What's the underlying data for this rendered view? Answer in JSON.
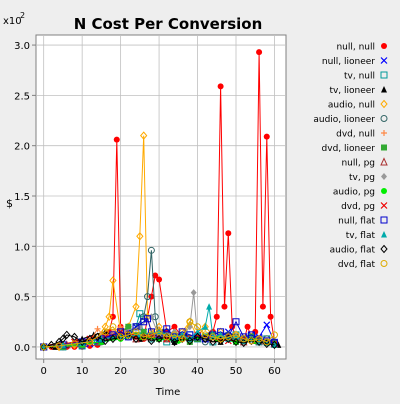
{
  "chart_data": {
    "type": "line",
    "title": "N Cost Per Conversion",
    "xlabel": "Time",
    "ylabel": "$",
    "y_multiplier_label": "x10",
    "y_multiplier_exp": "2",
    "xlim": [
      -2,
      63
    ],
    "ylim": [
      -0.12,
      3.1
    ],
    "x_ticks": [
      0,
      10,
      20,
      30,
      40,
      50,
      60
    ],
    "y_ticks": [
      0.0,
      0.5,
      1.0,
      1.5,
      2.0,
      2.5,
      3.0
    ],
    "y_tick_labels": [
      "0.0",
      "0.5",
      "1.0",
      "1.5",
      "2.0",
      "2.5",
      "3.0"
    ],
    "grid": true,
    "legend_position": "right",
    "series": [
      {
        "name": "null, null",
        "color": "#ff0000",
        "marker": "dot",
        "x": [
          0,
          2,
          4,
          6,
          8,
          10,
          12,
          14,
          15,
          16,
          17,
          18,
          19,
          20,
          22,
          24,
          26,
          28,
          29,
          30,
          32,
          34,
          36,
          38,
          40,
          42,
          44,
          45,
          46,
          47,
          48,
          49,
          50,
          52,
          53,
          54,
          55,
          56,
          57,
          58,
          59,
          60
        ],
        "y": [
          0,
          0,
          0,
          0,
          0,
          0,
          0.01,
          0.02,
          0.05,
          0.1,
          0.15,
          0.3,
          2.06,
          0.2,
          0.15,
          0.1,
          0.08,
          0.5,
          0.71,
          0.67,
          0.15,
          0.2,
          0.1,
          0.05,
          0.08,
          0.1,
          0.15,
          0.3,
          2.59,
          0.4,
          1.13,
          0.2,
          0.1,
          0.05,
          0.2,
          0.1,
          0.15,
          2.93,
          0.4,
          2.09,
          0.3,
          0.05
        ]
      },
      {
        "name": "null, lioneer",
        "color": "#0000ff",
        "marker": "x",
        "x": [
          0,
          5,
          10,
          12,
          14,
          16,
          18,
          20,
          22,
          24,
          26,
          28,
          30,
          32,
          34,
          36,
          38,
          40,
          42,
          44,
          46,
          48,
          50,
          52,
          54,
          56,
          58,
          60
        ],
        "y": [
          0,
          0,
          0.01,
          0.03,
          0.05,
          0.08,
          0.12,
          0.1,
          0.15,
          0.2,
          0.15,
          0.1,
          0.12,
          0.08,
          0.1,
          0.12,
          0.08,
          0.1,
          0.08,
          0.1,
          0.12,
          0.15,
          0.1,
          0.08,
          0.12,
          0.1,
          0.22,
          0.05
        ]
      },
      {
        "name": "tv, null",
        "color": "#009999",
        "marker": "square",
        "x": [
          0,
          5,
          10,
          14,
          18,
          20,
          22,
          24,
          25,
          26,
          28,
          30,
          32,
          34,
          36,
          38,
          40,
          42,
          44,
          46,
          48,
          50,
          52,
          54,
          56,
          58,
          60
        ],
        "y": [
          0,
          0,
          0.01,
          0.05,
          0.1,
          0.15,
          0.12,
          0.2,
          0.33,
          0.1,
          0.08,
          0.1,
          0.05,
          0.08,
          0.1,
          0.12,
          0.08,
          0.1,
          0.05,
          0.08,
          0.1,
          0.12,
          0.08,
          0.1,
          0.05,
          0.08,
          0.03
        ]
      },
      {
        "name": "tv, lioneer",
        "color": "#000000",
        "marker": "triangle",
        "x": [
          0,
          3,
          6,
          10,
          13,
          16,
          19,
          22,
          25,
          28,
          31,
          34,
          37,
          40,
          43,
          46,
          49,
          52,
          55,
          58,
          61
        ],
        "y": [
          0,
          0,
          0.02,
          0.08,
          0.12,
          0.15,
          0.1,
          0.12,
          0.08,
          0.1,
          0.15,
          0.05,
          0.1,
          0.08,
          0.12,
          0.05,
          0.1,
          0.08,
          0.06,
          0.05,
          0.02
        ]
      },
      {
        "name": "audio, null",
        "color": "#ffaa00",
        "marker": "diamond",
        "x": [
          0,
          4,
          8,
          12,
          14,
          16,
          17,
          18,
          20,
          22,
          24,
          25,
          26,
          27,
          28,
          30,
          32,
          34,
          36,
          38,
          40,
          42,
          44,
          46,
          48,
          50,
          52,
          54,
          56,
          58,
          60
        ],
        "y": [
          0,
          0,
          0.02,
          0.05,
          0.1,
          0.2,
          0.3,
          0.66,
          0.15,
          0.2,
          0.4,
          1.1,
          2.1,
          0.3,
          0.15,
          0.2,
          0.1,
          0.12,
          0.15,
          0.25,
          0.1,
          0.2,
          0.12,
          0.15,
          0.1,
          0.12,
          0.08,
          0.1,
          0.08,
          0.05,
          0.03
        ]
      },
      {
        "name": "audio, lioneer",
        "color": "#336666",
        "marker": "circle",
        "x": [
          0,
          5,
          10,
          15,
          18,
          20,
          22,
          24,
          26,
          27,
          28,
          29,
          30,
          32,
          34,
          36,
          38,
          40,
          42,
          44,
          46,
          48,
          50,
          52,
          54,
          56,
          58,
          60
        ],
        "y": [
          0,
          0,
          0.02,
          0.05,
          0.1,
          0.15,
          0.1,
          0.2,
          0.3,
          0.5,
          0.96,
          0.3,
          0.1,
          0.15,
          0.1,
          0.12,
          0.08,
          0.1,
          0.05,
          0.1,
          0.08,
          0.12,
          0.1,
          0.05,
          0.08,
          0.06,
          0.08,
          0.05
        ]
      },
      {
        "name": "dvd, null",
        "color": "#ff8844",
        "marker": "plus",
        "x": [
          0,
          4,
          8,
          12,
          14,
          16,
          18,
          20,
          22,
          24,
          26,
          28,
          30,
          32,
          34,
          36,
          38,
          40,
          42,
          44,
          46,
          48,
          50,
          52,
          54,
          56,
          58,
          60
        ],
        "y": [
          0,
          0,
          0.02,
          0.05,
          0.18,
          0.1,
          0.15,
          0.2,
          0.12,
          0.1,
          0.15,
          0.1,
          0.08,
          0.12,
          0.1,
          0.08,
          0.1,
          0.12,
          0.08,
          0.1,
          0.06,
          0.08,
          0.1,
          0.05,
          0.08,
          0.06,
          0.04,
          0.02
        ]
      },
      {
        "name": "dvd, lioneer",
        "color": "#33aa33",
        "marker": "fsquare",
        "x": [
          0,
          5,
          10,
          15,
          18,
          20,
          22,
          24,
          26,
          28,
          30,
          32,
          34,
          36,
          38,
          40,
          42,
          44,
          46,
          48,
          50,
          52,
          54,
          56,
          58,
          60
        ],
        "y": [
          0,
          0,
          0.02,
          0.05,
          0.1,
          0.15,
          0.2,
          0.12,
          0.15,
          0.1,
          0.08,
          0.1,
          0.12,
          0.1,
          0.05,
          0.08,
          0.1,
          0.12,
          0.08,
          0.1,
          0.05,
          0.08,
          0.1,
          0.06,
          0.04,
          0.02
        ]
      },
      {
        "name": "null, pg",
        "color": "#aa3333",
        "marker": "otriangle",
        "x": [
          0,
          6,
          12,
          16,
          20,
          24,
          27,
          30,
          32,
          36,
          40,
          44,
          48,
          52,
          56,
          60
        ],
        "y": [
          0,
          0.02,
          0.05,
          0.1,
          0.12,
          0.08,
          0.1,
          0.15,
          0.08,
          0.1,
          0.12,
          0.08,
          0.1,
          0.05,
          0.06,
          0.03
        ]
      },
      {
        "name": "tv, pg",
        "color": "#999999",
        "marker": "fdiamond",
        "x": [
          0,
          5,
          10,
          15,
          20,
          25,
          28,
          30,
          32,
          34,
          36,
          38,
          39,
          40,
          42,
          44,
          46,
          48,
          50,
          52,
          54,
          56,
          58,
          60
        ],
        "y": [
          0,
          0.02,
          0.05,
          0.1,
          0.15,
          0.2,
          0.3,
          0.1,
          0.12,
          0.15,
          0.1,
          0.2,
          0.54,
          0.1,
          0.08,
          0.1,
          0.12,
          0.08,
          0.1,
          0.05,
          0.08,
          0.06,
          0.04,
          0.03
        ]
      },
      {
        "name": "audio, pg",
        "color": "#00ee00",
        "marker": "dot",
        "x": [
          0,
          5,
          10,
          15,
          20,
          25,
          30,
          35,
          40,
          45,
          50,
          55,
          60
        ],
        "y": [
          0,
          0.01,
          0.03,
          0.05,
          0.08,
          0.1,
          0.08,
          0.06,
          0.1,
          0.08,
          0.05,
          0.06,
          0.03
        ]
      },
      {
        "name": "dvd, pg",
        "color": "#ee0000",
        "marker": "x",
        "x": [
          0,
          4,
          8,
          12,
          16,
          20,
          24,
          28,
          32,
          36,
          40,
          44,
          48,
          52,
          56,
          60
        ],
        "y": [
          0,
          0.02,
          0.05,
          0.08,
          0.1,
          0.15,
          0.1,
          0.12,
          0.08,
          0.1,
          0.12,
          0.08,
          0.06,
          0.08,
          0.05,
          0.03
        ]
      },
      {
        "name": "null, flat",
        "color": "#0000cc",
        "marker": "square",
        "x": [
          0,
          5,
          10,
          15,
          18,
          20,
          22,
          24,
          26,
          27,
          28,
          30,
          32,
          34,
          36,
          38,
          40,
          42,
          44,
          46,
          48,
          50,
          52,
          54,
          56,
          58,
          60
        ],
        "y": [
          0,
          0.02,
          0.05,
          0.08,
          0.12,
          0.15,
          0.1,
          0.2,
          0.25,
          0.28,
          0.15,
          0.12,
          0.18,
          0.1,
          0.15,
          0.12,
          0.1,
          0.08,
          0.12,
          0.15,
          0.1,
          0.25,
          0.1,
          0.12,
          0.08,
          0.06,
          0.04
        ]
      },
      {
        "name": "tv, flat",
        "color": "#00aaaa",
        "marker": "ftriangle",
        "x": [
          0,
          5,
          10,
          15,
          20,
          25,
          30,
          34,
          36,
          38,
          40,
          42,
          43,
          44,
          46,
          48,
          50,
          52,
          54,
          56,
          58,
          60
        ],
        "y": [
          0,
          0.02,
          0.04,
          0.08,
          0.1,
          0.12,
          0.15,
          0.1,
          0.12,
          0.08,
          0.15,
          0.2,
          0.4,
          0.1,
          0.12,
          0.08,
          0.1,
          0.06,
          0.08,
          0.05,
          0.04,
          0.02
        ]
      },
      {
        "name": "audio, flat",
        "color": "#000000",
        "marker": "odiamond",
        "x": [
          0,
          2,
          4,
          5,
          6,
          8,
          10,
          12,
          14,
          16,
          18,
          20,
          22,
          24,
          26,
          28,
          30,
          32,
          34,
          36,
          38,
          40,
          42,
          44,
          46,
          48,
          50,
          52,
          54,
          56,
          58,
          60
        ],
        "y": [
          0,
          0.02,
          0.05,
          0.08,
          0.12,
          0.1,
          0.05,
          0.08,
          0.1,
          0.06,
          0.08,
          0.1,
          0.12,
          0.08,
          0.1,
          0.06,
          0.08,
          0.1,
          0.05,
          0.08,
          0.06,
          0.1,
          0.08,
          0.05,
          0.06,
          0.08,
          0.05,
          0.04,
          0.06,
          0.05,
          0.03,
          0.02
        ]
      },
      {
        "name": "dvd, flat",
        "color": "#ddaa00",
        "marker": "circle",
        "x": [
          0,
          4,
          8,
          12,
          16,
          18,
          20,
          22,
          24,
          26,
          28,
          30,
          32,
          34,
          36,
          38,
          40,
          42,
          44,
          46,
          48,
          50,
          52,
          54,
          56,
          58,
          60
        ],
        "y": [
          0,
          0.01,
          0.03,
          0.05,
          0.15,
          0.2,
          0.1,
          0.12,
          0.15,
          0.1,
          0.12,
          0.15,
          0.1,
          0.12,
          0.08,
          0.25,
          0.2,
          0.12,
          0.1,
          0.08,
          0.1,
          0.12,
          0.08,
          0.06,
          0.08,
          0.05,
          0.12
        ]
      }
    ]
  }
}
